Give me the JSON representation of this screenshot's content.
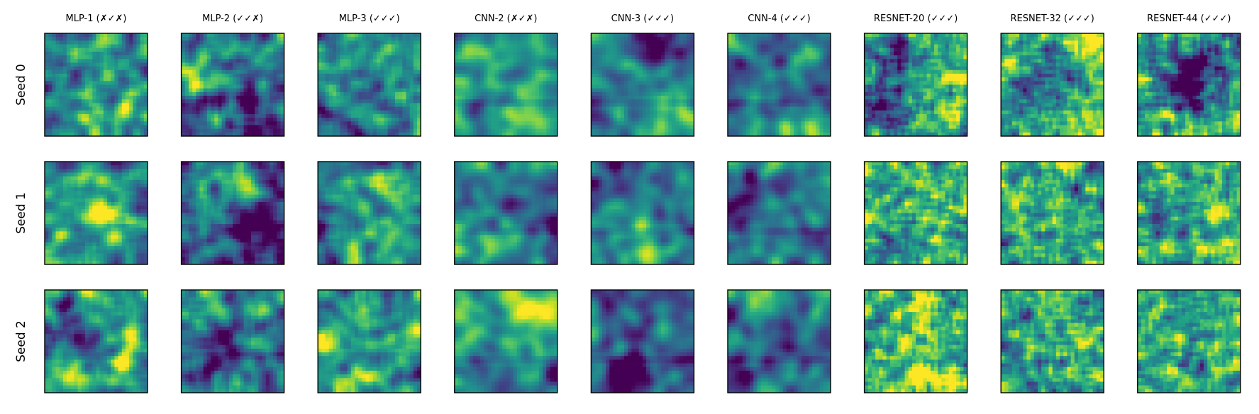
{
  "chart_data": {
    "type": "heatmap",
    "colormap": "viridis",
    "grid_size": 28,
    "axes_ticks": false,
    "columns": [
      "MLP-1 (✗✓✗)",
      "MLP-2 (✓✓✗)",
      "MLP-3 (✓✓✓)",
      "CNN-2 (✗✓✗)",
      "CNN-3 (✓✓✓)",
      "CNN-4 (✓✓✓)",
      "RESNET-20 (✓✓✓)",
      "RESNET-32 (✓✓✓)",
      "RESNET-44 (✓✓✓)"
    ],
    "rows": [
      "Seed 0",
      "Seed 1",
      "Seed 2"
    ],
    "panel_styles": [
      [
        "mlp",
        0.55,
        11
      ],
      [
        "mlp",
        0.32,
        12
      ],
      [
        "mlp",
        0.45,
        13
      ],
      [
        "cnn",
        0.48,
        21
      ],
      [
        "cnn",
        0.4,
        22
      ],
      [
        "cnn",
        0.44,
        23
      ],
      [
        "res",
        0.66,
        31
      ],
      [
        "res",
        0.62,
        32
      ],
      [
        "res",
        0.64,
        33
      ]
    ]
  }
}
